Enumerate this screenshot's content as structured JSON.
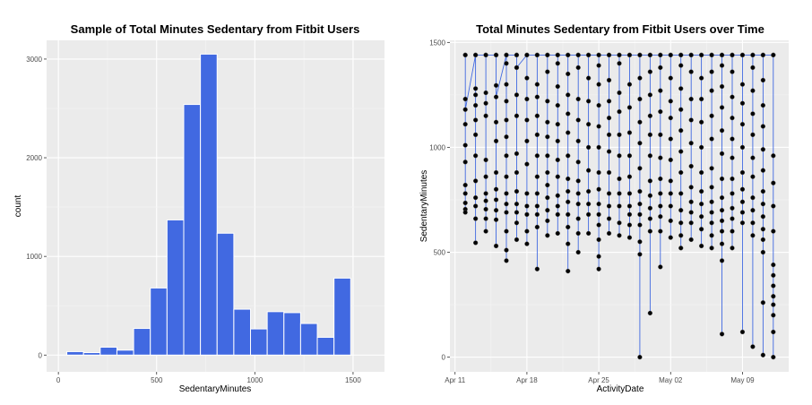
{
  "chart_data": [
    {
      "type": "histogram",
      "title": "Sample of Total Minutes Sedentary from Fitbit Users",
      "xlabel": "SedentaryMinutes",
      "ylabel": "count",
      "xlim": [
        -60,
        1660
      ],
      "ylim": [
        -170,
        3190
      ],
      "x_ticks": [
        0,
        500,
        1000,
        1500
      ],
      "y_ticks": [
        0,
        1000,
        2000,
        3000
      ],
      "bin_width": 85,
      "bin_starts": [
        43,
        128,
        213,
        298,
        383,
        468,
        553,
        638,
        723,
        808,
        893,
        978,
        1063,
        1148,
        1233,
        1318,
        1403
      ],
      "values": [
        35,
        25,
        80,
        50,
        270,
        680,
        1370,
        2540,
        3050,
        1235,
        465,
        265,
        440,
        430,
        320,
        180,
        780
      ],
      "fill": "#4169E1",
      "grid": true
    },
    {
      "type": "scatter",
      "title": "Total Minutes Sedentary from Fitbit Users over Time",
      "xlabel": "ActivityDate",
      "ylabel": "SedentaryMinutes",
      "x_ticks": [
        "Apr 11",
        "Apr 18",
        "Apr 25",
        "May 02",
        "May 09"
      ],
      "ylim": [
        -70,
        1510
      ],
      "y_ticks": [
        0,
        500,
        1000,
        1500
      ],
      "date_range": [
        "2016-04-11",
        "2016-05-13"
      ],
      "line_color": "#4169E1",
      "point_color": "#000000",
      "grid": true,
      "dates": [
        "2016-04-12",
        "2016-04-13",
        "2016-04-14",
        "2016-04-15",
        "2016-04-16",
        "2016-04-17",
        "2016-04-18",
        "2016-04-19",
        "2016-04-20",
        "2016-04-21",
        "2016-04-22",
        "2016-04-23",
        "2016-04-24",
        "2016-04-25",
        "2016-04-26",
        "2016-04-27",
        "2016-04-28",
        "2016-04-29",
        "2016-04-30",
        "2016-05-01",
        "2016-05-02",
        "2016-05-03",
        "2016-05-04",
        "2016-05-05",
        "2016-05-06",
        "2016-05-07",
        "2016-05-08",
        "2016-05-09",
        "2016-05-10",
        "2016-05-11",
        "2016-05-12"
      ],
      "values_by_day": [
        [
          1440,
          1230,
          1110,
          1010,
          930,
          820,
          780,
          735,
          705,
          690,
          1440,
          1180
        ],
        [
          1440,
          1280,
          1250,
          1200,
          1130,
          1060,
          960,
          840,
          760,
          720,
          660,
          545,
          1440
        ],
        [
          1440,
          1260,
          1210,
          1150,
          940,
          860,
          780,
          745,
          705,
          660,
          600,
          1440
        ],
        [
          1440,
          1295,
          1120,
          1030,
          880,
          800,
          750,
          700,
          655,
          530,
          1440,
          1240
        ],
        [
          1440,
          1400,
          1300,
          1220,
          1130,
          1050,
          960,
          860,
          780,
          730,
          690,
          600,
          510,
          460,
          1440
        ],
        [
          1440,
          1380,
          1250,
          1150,
          970,
          880,
          790,
          730,
          690,
          640,
          560,
          1440,
          1380
        ],
        [
          1440,
          1330,
          1230,
          1130,
          1030,
          920,
          780,
          720,
          680,
          600,
          540,
          1440
        ],
        [
          1440,
          1300,
          1240,
          1150,
          1060,
          960,
          860,
          780,
          720,
          680,
          620,
          420,
          1440
        ],
        [
          1440,
          1360,
          1220,
          1120,
          1050,
          960,
          880,
          820,
          760,
          700,
          650,
          580,
          1440
        ],
        [
          1440,
          1400,
          1290,
          1200,
          1110,
          1030,
          940,
          860,
          770,
          720,
          680,
          590,
          1440
        ],
        [
          1440,
          1350,
          1250,
          1160,
          1070,
          960,
          850,
          790,
          740,
          680,
          620,
          540,
          410,
          1440
        ],
        [
          1440,
          1380,
          1230,
          1130,
          1030,
          930,
          840,
          780,
          730,
          660,
          590,
          500,
          1440
        ],
        [
          1440,
          1330,
          1220,
          1110,
          1000,
          890,
          790,
          730,
          680,
          590,
          1440
        ],
        [
          1440,
          1390,
          1300,
          1200,
          1100,
          1000,
          880,
          800,
          730,
          680,
          630,
          560,
          480,
          420,
          1440
        ],
        [
          1440,
          1320,
          1220,
          1140,
          1060,
          980,
          880,
          780,
          720,
          660,
          590,
          1440
        ],
        [
          1440,
          1400,
          1260,
          1170,
          1060,
          960,
          850,
          780,
          720,
          640,
          580,
          1440
        ],
        [
          1440,
          1300,
          1190,
          1070,
          960,
          860,
          780,
          720,
          680,
          630,
          570,
          1440
        ],
        [
          1440,
          1330,
          1230,
          1120,
          1020,
          900,
          790,
          730,
          680,
          630,
          550,
          490,
          0,
          1440
        ],
        [
          1440,
          1360,
          1250,
          1150,
          1060,
          960,
          840,
          770,
          710,
          660,
          600,
          210,
          1440
        ],
        [
          1440,
          1380,
          1270,
          1170,
          1060,
          950,
          850,
          780,
          720,
          670,
          600,
          430,
          1440
        ],
        [
          1440,
          1330,
          1220,
          1140,
          1040,
          940,
          840,
          780,
          720,
          650,
          570,
          1440
        ],
        [
          1440,
          1390,
          1280,
          1180,
          1080,
          980,
          880,
          780,
          700,
          640,
          580,
          520,
          1440
        ],
        [
          1440,
          1360,
          1230,
          1130,
          1020,
          910,
          810,
          740,
          690,
          640,
          560,
          1440
        ],
        [
          1440,
          1330,
          1230,
          1120,
          1000,
          880,
          790,
          730,
          670,
          610,
          530,
          1440
        ],
        [
          1440,
          1360,
          1270,
          1150,
          1040,
          900,
          810,
          740,
          690,
          640,
          580,
          520,
          1440
        ],
        [
          1440,
          1390,
          1290,
          1190,
          1080,
          970,
          850,
          760,
          700,
          650,
          600,
          540,
          460,
          110,
          1440
        ],
        [
          1440,
          1360,
          1240,
          1140,
          1040,
          950,
          850,
          780,
          710,
          660,
          600,
          520,
          1440
        ],
        [
          1440,
          1300,
          1210,
          1110,
          1000,
          880,
          800,
          740,
          690,
          640,
          120,
          1440
        ],
        [
          1440,
          1380,
          1270,
          1160,
          1060,
          950,
          860,
          760,
          700,
          640,
          580,
          50,
          1440
        ],
        [
          1440,
          1320,
          1200,
          1100,
          990,
          890,
          790,
          730,
          670,
          610,
          560,
          500,
          260,
          10,
          1440
        ],
        [
          1440,
          960,
          830,
          720,
          600,
          440,
          390,
          340,
          290,
          250,
          200,
          120,
          0,
          1440
        ]
      ]
    }
  ]
}
